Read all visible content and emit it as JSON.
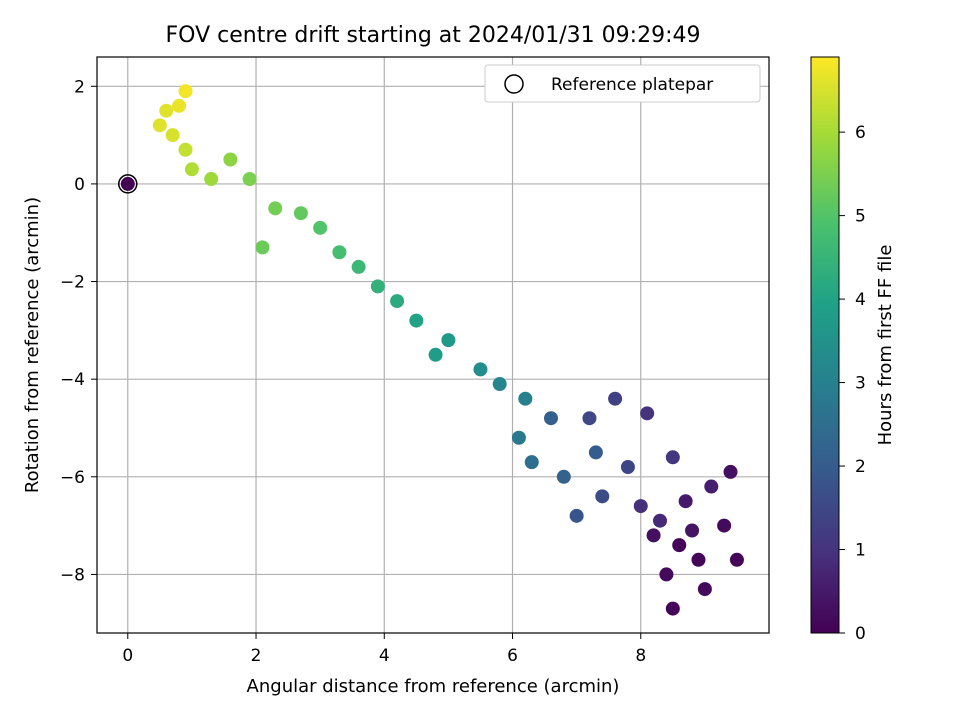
{
  "chart_data": {
    "type": "scatter",
    "title": "FOV centre drift starting at 2024/01/31 09:29:49",
    "xlabel": "Angular distance from reference (arcmin)",
    "ylabel": "Rotation from reference (arcmin)",
    "xlim": [
      -0.48,
      10.0
    ],
    "ylim": [
      -9.2,
      2.6
    ],
    "x_ticks": [
      "0",
      "2",
      "4",
      "6",
      "8"
    ],
    "y_ticks": [
      "2",
      "0",
      "−2",
      "−4",
      "−6",
      "−8"
    ],
    "grid": true,
    "legend": {
      "position": "top-right",
      "entries": [
        "Reference platepar"
      ]
    },
    "colorbar": {
      "label": "Hours from first FF file",
      "range": [
        0,
        6.9
      ],
      "ticks": [
        "0",
        "1",
        "2",
        "3",
        "4",
        "5",
        "6"
      ],
      "colormap": "viridis"
    },
    "reference_point": {
      "x": 0,
      "y": 0
    },
    "series": [
      {
        "values": [
          [
            8.9,
            -7.7,
            0.1
          ],
          [
            9.5,
            -7.7,
            0.1
          ],
          [
            9.0,
            -8.3,
            0.2
          ],
          [
            8.5,
            -8.7,
            0.1
          ],
          [
            8.4,
            -8.0,
            0.2
          ],
          [
            8.6,
            -7.4,
            0.1
          ],
          [
            8.2,
            -7.2,
            0.3
          ],
          [
            8.8,
            -7.1,
            0.4
          ],
          [
            9.3,
            -7.0,
            0.2
          ],
          [
            9.4,
            -5.9,
            0.3
          ],
          [
            9.1,
            -6.2,
            0.6
          ],
          [
            8.7,
            -6.5,
            0.5
          ],
          [
            8.3,
            -6.9,
            0.8
          ],
          [
            8.0,
            -6.6,
            0.9
          ],
          [
            8.1,
            -4.7,
            1.0
          ],
          [
            8.5,
            -5.6,
            1.1
          ],
          [
            7.6,
            -4.4,
            1.3
          ],
          [
            7.2,
            -4.8,
            1.5
          ],
          [
            7.8,
            -5.8,
            1.4
          ],
          [
            7.4,
            -6.4,
            1.6
          ],
          [
            7.0,
            -6.8,
            1.8
          ],
          [
            7.3,
            -5.5,
            2.0
          ],
          [
            6.6,
            -4.8,
            2.1
          ],
          [
            6.8,
            -6.0,
            2.2
          ],
          [
            6.3,
            -5.7,
            2.5
          ],
          [
            6.1,
            -5.2,
            2.8
          ],
          [
            6.2,
            -4.4,
            3.0
          ],
          [
            5.8,
            -4.1,
            3.2
          ],
          [
            5.5,
            -3.8,
            3.4
          ],
          [
            5.0,
            -3.2,
            3.7
          ],
          [
            4.8,
            -3.5,
            3.8
          ],
          [
            4.5,
            -2.8,
            4.0
          ],
          [
            4.2,
            -2.4,
            4.2
          ],
          [
            3.9,
            -2.1,
            4.4
          ],
          [
            3.6,
            -1.7,
            4.6
          ],
          [
            3.3,
            -1.4,
            4.8
          ],
          [
            3.0,
            -0.9,
            5.0
          ],
          [
            2.7,
            -0.6,
            5.2
          ],
          [
            2.3,
            -0.5,
            5.4
          ],
          [
            2.1,
            -1.3,
            5.3
          ],
          [
            1.9,
            0.1,
            5.5
          ],
          [
            1.6,
            0.5,
            5.7
          ],
          [
            1.3,
            0.1,
            5.9
          ],
          [
            1.0,
            0.3,
            6.1
          ],
          [
            0.9,
            0.7,
            6.3
          ],
          [
            0.7,
            1.0,
            6.5
          ],
          [
            0.5,
            1.2,
            6.6
          ],
          [
            0.8,
            1.6,
            6.7
          ],
          [
            0.9,
            1.9,
            6.8
          ],
          [
            0.6,
            1.5,
            6.6
          ]
        ]
      }
    ]
  }
}
